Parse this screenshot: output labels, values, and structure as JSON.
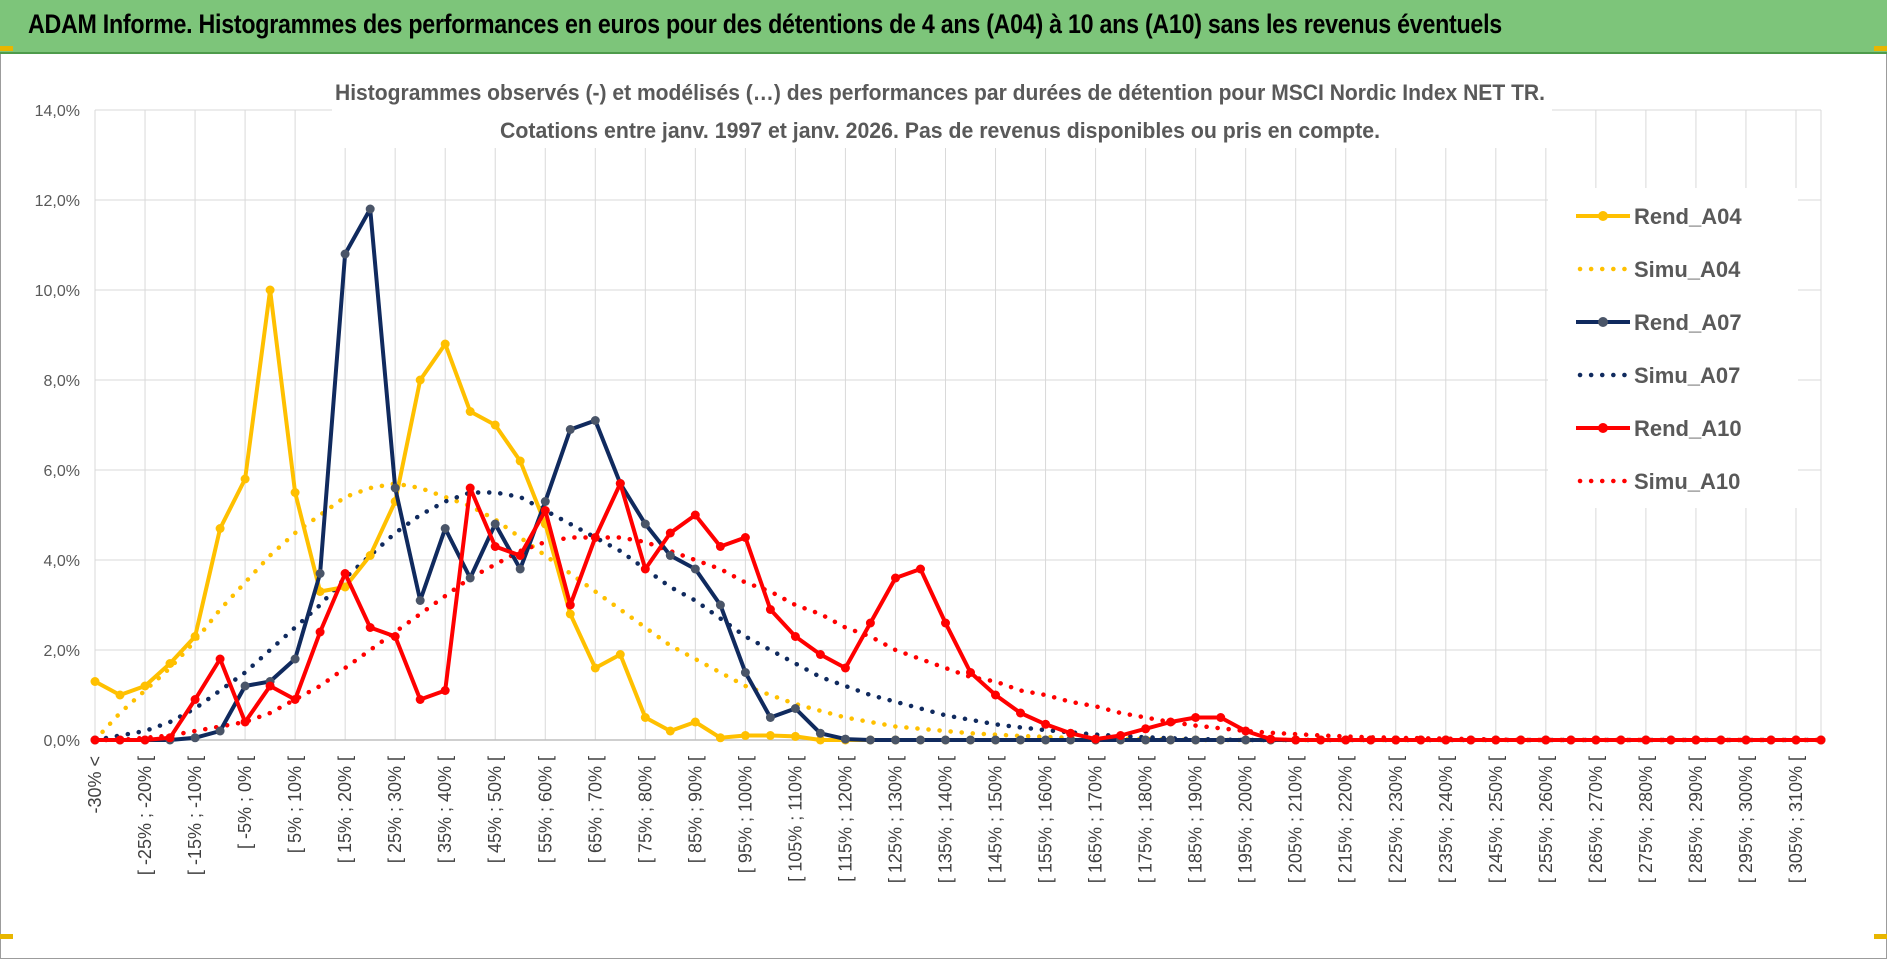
{
  "banner": {
    "title": "ADAM Informe. Histogrammes des performances en euros pour des détentions de 4 ans (A04) à 10 ans (A10) sans les revenus éventuels"
  },
  "colors": {
    "banner": "#7dc57a",
    "gridline": "#d9d9d9",
    "A04": "#ffc000",
    "A07": "#102a5e",
    "A07_marker": "#4a5568",
    "A10": "#ff0000"
  },
  "chart_data": {
    "type": "line",
    "title": "Histogrammes observés (-) et modélisés (…) des performances par durées de détention pour MSCI Nordic Index NET TR.",
    "subtitle": "Cotations entre janv. 1997 et janv. 2026. Pas de revenus disponibles ou pris en compte.",
    "xlabel": "",
    "ylabel": "",
    "ylim": [
      0,
      14
    ],
    "yticks": [
      "0,0%",
      "2,0%",
      "4,0%",
      "6,0%",
      "8,0%",
      "10,0%",
      "12,0%",
      "14,0%"
    ],
    "grid": true,
    "legend_position": "right",
    "x_labels": [
      "-30% <",
      "[ -25% ; -20% [",
      "[ -15% ; -10% [",
      "[ -5% ; 0% [",
      "[ 5% ; 10% [",
      "[ 15% ; 20% [",
      "[ 25% ; 30% [",
      "[ 35% ; 40% [",
      "[ 45% ; 50% [",
      "[ 55% ; 60% [",
      "[ 65% ; 70% [",
      "[ 75% ; 80% [",
      "[ 85% ; 90% [",
      "[ 95% ; 100% [",
      "[ 105% ; 110% [",
      "[ 115% ; 120% [",
      "[ 125% ; 130% [",
      "[ 135% ; 140% [",
      "[ 145% ; 150% [",
      "[ 155% ; 160% [",
      "[ 165% ; 170% [",
      "[ 175% ; 180% [",
      "[ 185% ; 190% [",
      "[ 195% ; 200% [",
      "[ 205% ; 210% [",
      "[ 215% ; 220% [",
      "[ 225% ; 230% [",
      "[ 235% ; 240% [",
      "[ 245% ; 250% [",
      "[ 255% ; 260% [",
      "[ 265% ; 270% [",
      "[ 275% ; 280% [",
      "[ 285% ; 290% [",
      "[ 295% ; 300% [",
      "[ 305% ; 310% ["
    ],
    "x_label_positions": [
      0,
      2,
      4,
      6,
      8,
      10,
      12,
      14,
      16,
      18,
      20,
      22,
      24,
      26,
      28,
      30,
      32,
      34,
      36,
      38,
      40,
      42,
      44,
      46,
      48,
      50,
      52,
      54,
      56,
      58,
      60,
      62,
      64,
      66,
      68
    ],
    "n_points": 70,
    "series": [
      {
        "name": "Rend_A04",
        "style": "solid",
        "markers": true,
        "color": "#ffc000",
        "values": [
          1.3,
          1.0,
          1.2,
          1.7,
          2.3,
          4.7,
          5.8,
          10.0,
          5.5,
          3.3,
          3.4,
          4.1,
          5.3,
          8.0,
          8.8,
          7.3,
          7.0,
          6.2,
          4.8,
          2.8,
          1.6,
          1.9,
          0.5,
          0.2,
          0.4,
          0.05,
          0.1,
          0.1,
          0.08,
          0,
          0,
          0,
          0,
          0,
          0,
          0,
          0,
          0,
          0,
          0,
          0,
          0,
          0,
          0,
          0,
          0,
          0,
          0,
          0,
          0,
          0,
          0,
          0,
          0,
          0,
          0,
          0,
          0,
          0,
          0,
          0,
          0,
          0,
          0,
          0,
          0,
          0,
          0,
          0,
          0
        ]
      },
      {
        "name": "Simu_A04",
        "style": "dotted",
        "markers": false,
        "color": "#ffc000",
        "values": [
          0.0,
          0.6,
          1.1,
          1.6,
          2.2,
          2.9,
          3.5,
          4.1,
          4.6,
          5.0,
          5.4,
          5.6,
          5.7,
          5.6,
          5.4,
          5.2,
          4.9,
          4.5,
          4.1,
          3.7,
          3.3,
          2.9,
          2.5,
          2.1,
          1.8,
          1.5,
          1.2,
          1.0,
          0.8,
          0.65,
          0.5,
          0.4,
          0.3,
          0.25,
          0.2,
          0.15,
          0.12,
          0.09,
          0.07,
          0.05,
          0.04,
          0.03,
          0.02,
          0.01,
          0,
          0,
          0,
          0,
          0,
          0,
          0,
          0,
          0,
          0,
          0,
          0,
          0,
          0,
          0,
          0,
          0,
          0,
          0,
          0,
          0,
          0,
          0,
          0,
          0,
          0
        ]
      },
      {
        "name": "Rend_A07",
        "style": "solid",
        "markers": true,
        "color": "#102a5e",
        "values": [
          0,
          0,
          0,
          0,
          0.05,
          0.2,
          1.2,
          1.3,
          1.8,
          3.7,
          10.8,
          11.8,
          5.6,
          3.1,
          4.7,
          3.6,
          4.8,
          3.8,
          5.3,
          6.9,
          7.1,
          5.7,
          4.8,
          4.1,
          3.8,
          3.0,
          1.5,
          0.5,
          0.7,
          0.15,
          0.02,
          0,
          0,
          0,
          0,
          0,
          0,
          0,
          0,
          0,
          0,
          0,
          0,
          0,
          0,
          0,
          0,
          0,
          0,
          0,
          0,
          0,
          0,
          0,
          0,
          0,
          0,
          0,
          0,
          0,
          0,
          0,
          0,
          0,
          0,
          0,
          0,
          0,
          0,
          0
        ]
      },
      {
        "name": "Simu_A07",
        "style": "dotted",
        "markers": false,
        "color": "#102a5e",
        "values": [
          0.0,
          0.1,
          0.2,
          0.4,
          0.7,
          1.1,
          1.5,
          2.0,
          2.5,
          3.0,
          3.6,
          4.1,
          4.6,
          5.0,
          5.3,
          5.5,
          5.5,
          5.4,
          5.1,
          4.8,
          4.5,
          4.2,
          3.8,
          3.4,
          3.1,
          2.7,
          2.3,
          2.0,
          1.7,
          1.4,
          1.2,
          1.0,
          0.85,
          0.7,
          0.55,
          0.45,
          0.35,
          0.28,
          0.22,
          0.17,
          0.12,
          0.09,
          0.06,
          0.04,
          0.02,
          0.01,
          0,
          0,
          0,
          0,
          0,
          0,
          0,
          0,
          0,
          0,
          0,
          0,
          0,
          0,
          0,
          0,
          0,
          0,
          0,
          0,
          0,
          0,
          0,
          0
        ]
      },
      {
        "name": "Rend_A10",
        "style": "solid",
        "markers": true,
        "color": "#ff0000",
        "values": [
          0,
          0,
          0,
          0.05,
          0.9,
          1.8,
          0.4,
          1.2,
          0.9,
          2.4,
          3.7,
          2.5,
          2.3,
          0.9,
          1.1,
          5.6,
          4.3,
          4.1,
          5.1,
          3.0,
          4.5,
          5.7,
          3.8,
          4.6,
          5.0,
          4.3,
          4.5,
          2.9,
          2.3,
          1.9,
          1.6,
          2.6,
          3.6,
          3.8,
          2.6,
          1.5,
          1.0,
          0.6,
          0.35,
          0.15,
          0.02,
          0.1,
          0.25,
          0.4,
          0.5,
          0.5,
          0.2,
          0.02,
          0,
          0,
          0,
          0,
          0,
          0,
          0,
          0,
          0,
          0,
          0,
          0,
          0,
          0,
          0,
          0,
          0,
          0,
          0,
          0,
          0,
          0
        ]
      },
      {
        "name": "Simu_A10",
        "style": "dotted",
        "markers": false,
        "color": "#ff0000",
        "values": [
          0.0,
          0.0,
          0.05,
          0.1,
          0.2,
          0.3,
          0.4,
          0.6,
          0.9,
          1.2,
          1.6,
          2.0,
          2.4,
          2.8,
          3.2,
          3.6,
          3.9,
          4.2,
          4.4,
          4.5,
          4.5,
          4.5,
          4.4,
          4.2,
          4.0,
          3.8,
          3.5,
          3.3,
          3.0,
          2.8,
          2.5,
          2.3,
          2.0,
          1.8,
          1.6,
          1.4,
          1.3,
          1.1,
          1.0,
          0.85,
          0.75,
          0.6,
          0.5,
          0.4,
          0.32,
          0.26,
          0.2,
          0.16,
          0.13,
          0.1,
          0.08,
          0.06,
          0.05,
          0.04,
          0.03,
          0.02,
          0.01,
          0,
          0,
          0,
          0,
          0,
          0,
          0,
          0,
          0,
          0,
          0,
          0,
          0
        ]
      }
    ]
  }
}
